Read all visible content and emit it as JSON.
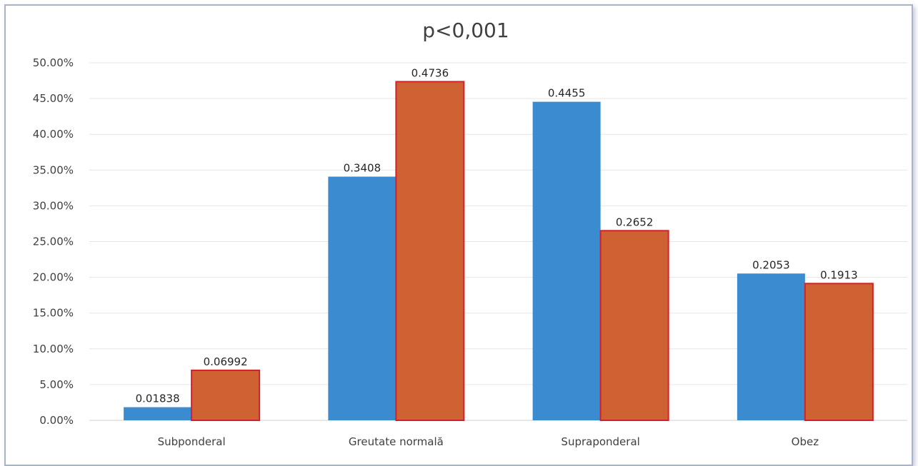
{
  "chart_data": {
    "type": "bar",
    "title": "p<0,001",
    "categories": [
      "Subponderal",
      "Greutate normală",
      "Supraponderal",
      "Obez"
    ],
    "series": [
      {
        "values": [
          0.01838,
          0.3408,
          0.4455,
          0.2053
        ],
        "labels": [
          "0.01838",
          "0.3408",
          "0.4455",
          "0.2053"
        ],
        "color": "#3a8bd0"
      },
      {
        "values": [
          0.06992,
          0.4736,
          0.2652,
          0.1913
        ],
        "labels": [
          "0.06992",
          "0.4736",
          "0.2652",
          "0.1913"
        ],
        "color": "#cf6232",
        "outline": "#d4202a"
      }
    ],
    "ylim": [
      0,
      0.5
    ],
    "yticks": [
      0,
      0.05,
      0.1,
      0.15,
      0.2,
      0.25,
      0.3,
      0.35,
      0.4,
      0.45,
      0.5
    ],
    "ytick_labels": [
      "0.00%",
      "5.00%",
      "10.00%",
      "15.00%",
      "20.00%",
      "25.00%",
      "30.00%",
      "35.00%",
      "40.00%",
      "45.00%",
      "50.00%"
    ],
    "grid": true,
    "legend": "none"
  }
}
